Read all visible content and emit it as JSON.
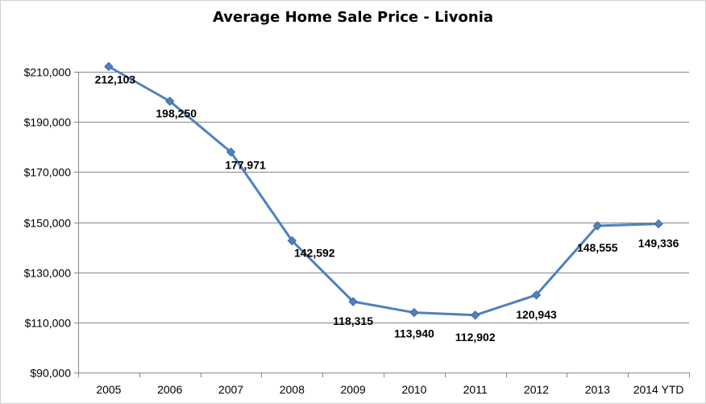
{
  "chart_data": {
    "type": "line",
    "title": "Average Home Sale Price - Livonia",
    "xlabel": "",
    "ylabel": "",
    "categories": [
      "2005",
      "2006",
      "2007",
      "2008",
      "2009",
      "2010",
      "2011",
      "2012",
      "2013",
      "2014 YTD"
    ],
    "series": [
      {
        "values": [
          212103,
          198250,
          177971,
          142592,
          118315,
          113940,
          112902,
          120943,
          148555,
          149336
        ],
        "data_labels": [
          "212,103",
          "198,250",
          "177,971",
          "142,592",
          "118,315",
          "113,940",
          "112,902",
          "120,943",
          "148,555",
          "149,336"
        ]
      }
    ],
    "ylim": [
      90000,
      210000
    ],
    "y_ticks": [
      90000,
      110000,
      130000,
      150000,
      170000,
      190000,
      210000
    ],
    "y_tick_labels": [
      "$90,000",
      "$110,000",
      "$130,000",
      "$150,000",
      "$170,000",
      "$190,000",
      "$210,000"
    ],
    "grid": true,
    "legend": "none",
    "colors": {
      "line": "#4f81bd",
      "marker": "#4f81bd",
      "grid": "#868686",
      "axis": "#868686"
    },
    "marker": "diamond-icon"
  }
}
